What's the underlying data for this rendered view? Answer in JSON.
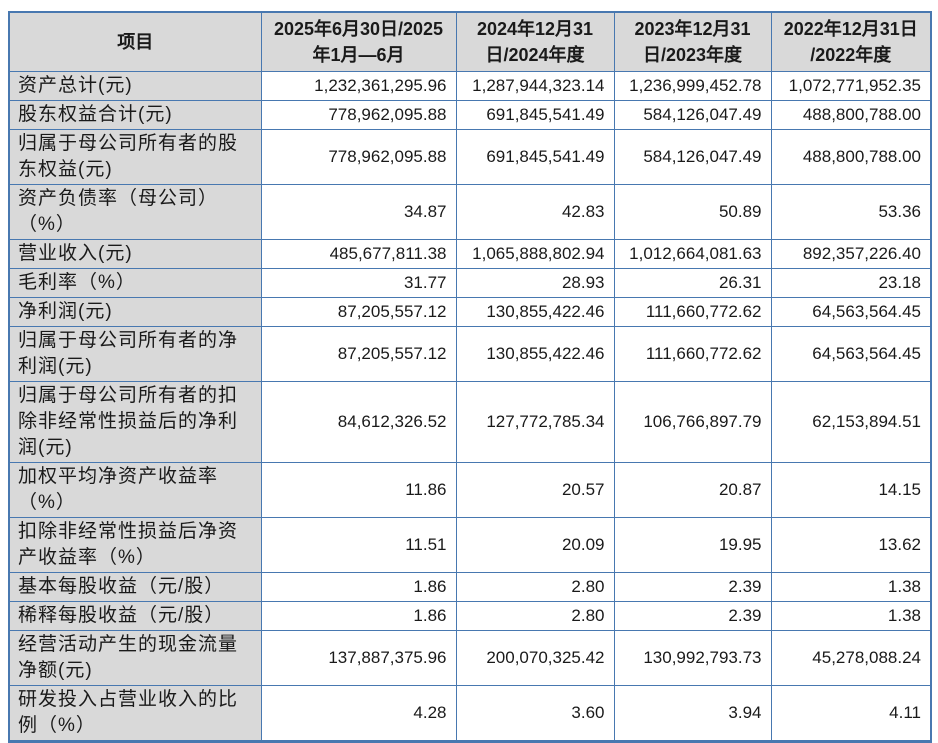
{
  "colors": {
    "table_border_blue": "#4878b0",
    "header_and_label_gray": "#d9d9d9",
    "text_color": "#1a1a1a"
  },
  "table": {
    "columns": [
      {
        "title": "项目"
      },
      {
        "line1": "2025年6月30日/2025",
        "line2": "年1月—6月"
      },
      {
        "line1": "2024年12月31",
        "line2": "日/2024年度"
      },
      {
        "line1": "2023年12月31",
        "line2": "日/2023年度"
      },
      {
        "line1": "2022年12月31日",
        "line2": "/2022年度"
      }
    ],
    "rows": [
      {
        "label": "资产总计(元)",
        "values": [
          "1,232,361,295.96",
          "1,287,944,323.14",
          "1,236,999,452.78",
          "1,072,771,952.35"
        ]
      },
      {
        "label": "股东权益合计(元)",
        "values": [
          "778,962,095.88",
          "691,845,541.49",
          "584,126,047.49",
          "488,800,788.00"
        ]
      },
      {
        "label": "归属于母公司所有者的股东权益(元)",
        "values": [
          "778,962,095.88",
          "691,845,541.49",
          "584,126,047.49",
          "488,800,788.00"
        ]
      },
      {
        "label": "资产负债率（母公司）（%）",
        "values": [
          "34.87",
          "42.83",
          "50.89",
          "53.36"
        ]
      },
      {
        "label": "营业收入(元)",
        "values": [
          "485,677,811.38",
          "1,065,888,802.94",
          "1,012,664,081.63",
          "892,357,226.40"
        ]
      },
      {
        "label": "毛利率（%）",
        "values": [
          "31.77",
          "28.93",
          "26.31",
          "23.18"
        ]
      },
      {
        "label": "净利润(元)",
        "values": [
          "87,205,557.12",
          "130,855,422.46",
          "111,660,772.62",
          "64,563,564.45"
        ]
      },
      {
        "label": "归属于母公司所有者的净利润(元)",
        "values": [
          "87,205,557.12",
          "130,855,422.46",
          "111,660,772.62",
          "64,563,564.45"
        ]
      },
      {
        "label": "归属于母公司所有者的扣除非经常性损益后的净利润(元)",
        "values": [
          "84,612,326.52",
          "127,772,785.34",
          "106,766,897.79",
          "62,153,894.51"
        ]
      },
      {
        "label": "加权平均净资产收益率（%）",
        "values": [
          "11.86",
          "20.57",
          "20.87",
          "14.15"
        ]
      },
      {
        "label": "扣除非经常性损益后净资产收益率（%）",
        "values": [
          "11.51",
          "20.09",
          "19.95",
          "13.62"
        ]
      },
      {
        "label": "基本每股收益（元/股）",
        "values": [
          "1.86",
          "2.80",
          "2.39",
          "1.38"
        ]
      },
      {
        "label": "稀释每股收益（元/股）",
        "values": [
          "1.86",
          "2.80",
          "2.39",
          "1.38"
        ]
      },
      {
        "label": "经营活动产生的现金流量净额(元)",
        "values": [
          "137,887,375.96",
          "200,070,325.42",
          "130,992,793.73",
          "45,278,088.24"
        ]
      },
      {
        "label": "研发投入占营业收入的比例（%）",
        "values": [
          "4.28",
          "3.60",
          "3.94",
          "4.11"
        ]
      }
    ]
  }
}
